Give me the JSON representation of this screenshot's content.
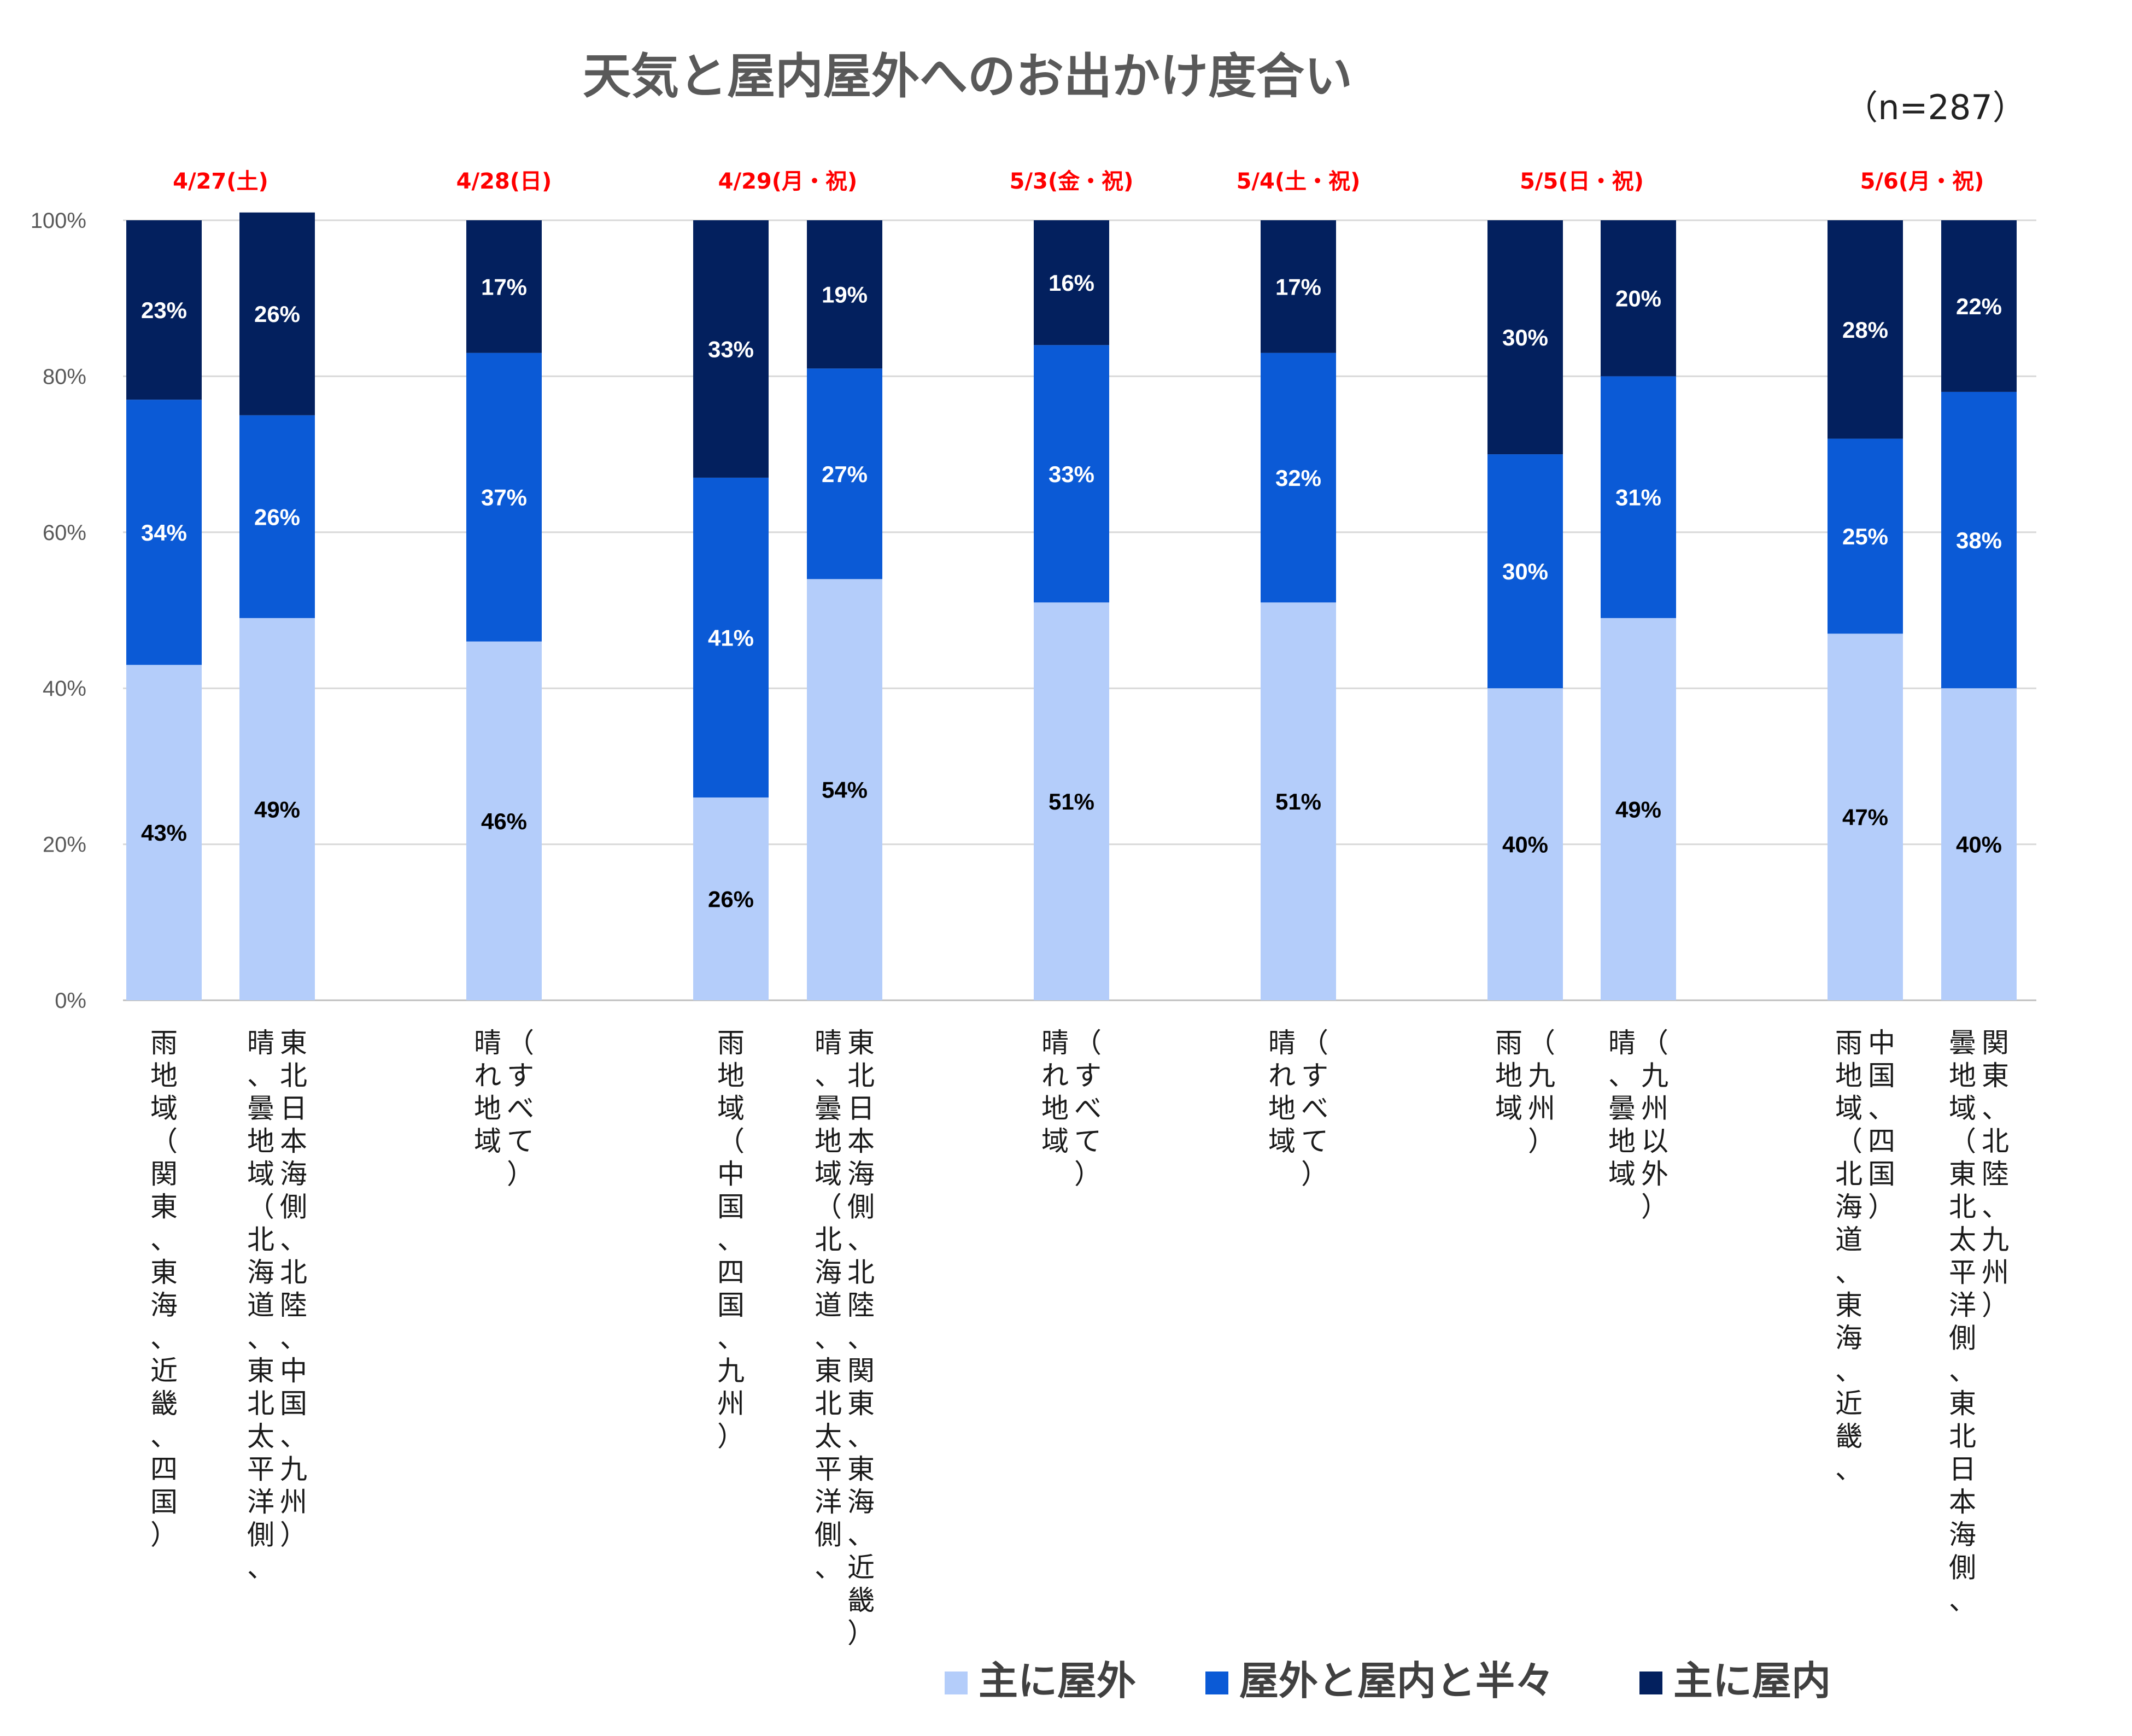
{
  "chart_data": {
    "type": "bar",
    "stacked": true,
    "percent_stacked": true,
    "title": "天気と屋内屋外へのお出かけ度合い",
    "sample_note": "（n=287）",
    "ylim": [
      0,
      100
    ],
    "yticks": [
      "0%",
      "20%",
      "40%",
      "60%",
      "80%",
      "100%"
    ],
    "grid": true,
    "legend_position": "bottom-right",
    "colors": {
      "outdoor": "#b4cdfa",
      "half": "#0b5ad6",
      "indoor": "#03205e",
      "date": "#ff0000"
    },
    "dates": [
      {
        "label": "4/27(土)",
        "bars": [
          0,
          1
        ]
      },
      {
        "label": "4/28(日)",
        "bars": [
          2
        ]
      },
      {
        "label": "4/29(月・祝)",
        "bars": [
          3,
          4
        ]
      },
      {
        "label": "5/3(金・祝)",
        "bars": [
          5
        ]
      },
      {
        "label": "5/4(土・祝)",
        "bars": [
          6
        ]
      },
      {
        "label": "5/5(日・祝)",
        "bars": [
          7,
          8
        ]
      },
      {
        "label": "5/6(月・祝)",
        "bars": [
          9,
          10
        ]
      }
    ],
    "categories": [
      [
        "雨地域（関東、東海、近畿、四国）"
      ],
      [
        "東北日本海側、北陸、中国、九州）",
        "晴、曇地域（北海道、東北太平洋側、"
      ],
      [
        "（すべて）",
        "晴れ地域"
      ],
      [
        "雨地域（中国、四国、九州）"
      ],
      [
        "東北日本海側、北陸、関東、東海、近畿）",
        "晴、曇地域（北海道、東北太平洋側、"
      ],
      [
        "（すべて）",
        "晴れ地域"
      ],
      [
        "（すべて）",
        "晴れ地域"
      ],
      [
        "（九州）",
        "雨地域"
      ],
      [
        "（九州以外）",
        "晴、曇地域"
      ],
      [
        "中国、四国）",
        "雨地域（北海道、東海、近畿、"
      ],
      [
        "関東、北陸、九州）",
        "曇地域（東北太平洋側、東北日本海側、"
      ]
    ],
    "series": [
      {
        "name": "主に屋外",
        "values": [
          43,
          49,
          46,
          26,
          54,
          51,
          51,
          40,
          49,
          47,
          40
        ]
      },
      {
        "name": "屋外と屋内と半々",
        "values": [
          34,
          26,
          37,
          41,
          27,
          33,
          32,
          30,
          31,
          25,
          38
        ]
      },
      {
        "name": "主に屋内",
        "values": [
          23,
          26,
          17,
          33,
          19,
          16,
          17,
          30,
          20,
          28,
          22
        ]
      }
    ],
    "label_colors": [
      "#000000",
      "#ffffff",
      "#ffffff"
    ]
  }
}
